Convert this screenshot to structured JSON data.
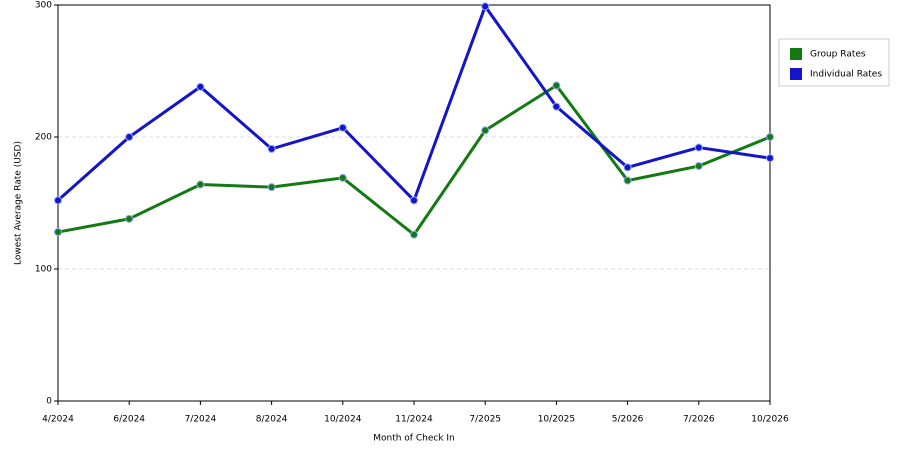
{
  "chart_data": {
    "type": "line",
    "x_label": "Month of Check In",
    "y_label": "Lowest Average Rate (USD)",
    "categories": [
      "4/2024",
      "6/2024",
      "7/2024",
      "8/2024",
      "10/2024",
      "11/2024",
      "7/2025",
      "10/2025",
      "5/2026",
      "7/2026",
      "10/2026"
    ],
    "series": [
      {
        "name": "Group Rates",
        "color": "#137a13",
        "values": [
          128,
          138,
          164,
          162,
          169,
          126,
          205,
          239,
          167,
          178,
          200
        ]
      },
      {
        "name": "Individual Rates",
        "color": "#1414c8",
        "values": [
          152,
          200,
          238,
          191,
          207,
          152,
          299,
          223,
          177,
          192,
          184
        ]
      }
    ],
    "ylim": [
      0,
      300
    ],
    "yticks": [
      0,
      100,
      200,
      300
    ],
    "grid": true,
    "legend": "right"
  }
}
